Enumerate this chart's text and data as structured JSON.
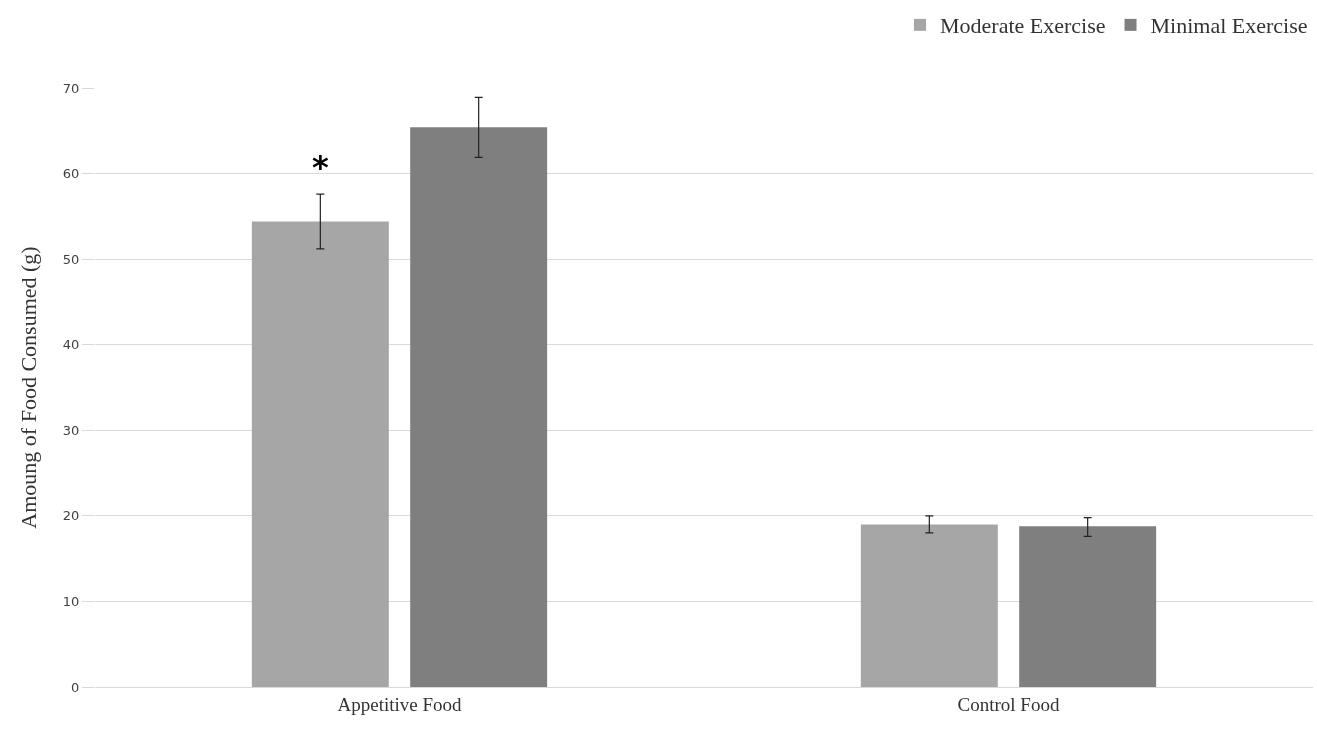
{
  "chart_data": {
    "type": "bar",
    "ylabel": "Amoung of Food Consumed (g)",
    "categories": [
      "Appetitive Food",
      "Control Food"
    ],
    "series": [
      {
        "name": "Moderate Exercise",
        "color": "#a6a6a6",
        "values": [
          54.4,
          19.0
        ],
        "errors": [
          [
            51.2,
            57.6
          ],
          [
            18.0,
            20.0
          ]
        ]
      },
      {
        "name": "Minimal Exercise",
        "color": "#7f7f7f",
        "values": [
          65.4,
          18.8
        ],
        "errors": [
          [
            61.9,
            68.9
          ],
          [
            17.6,
            19.8
          ]
        ]
      }
    ],
    "ylim": [
      0,
      70
    ],
    "yticks": [
      0,
      10,
      20,
      30,
      40,
      50,
      60,
      70
    ],
    "grid": "y",
    "legend": "top right",
    "annotations": [
      "*"
    ]
  }
}
